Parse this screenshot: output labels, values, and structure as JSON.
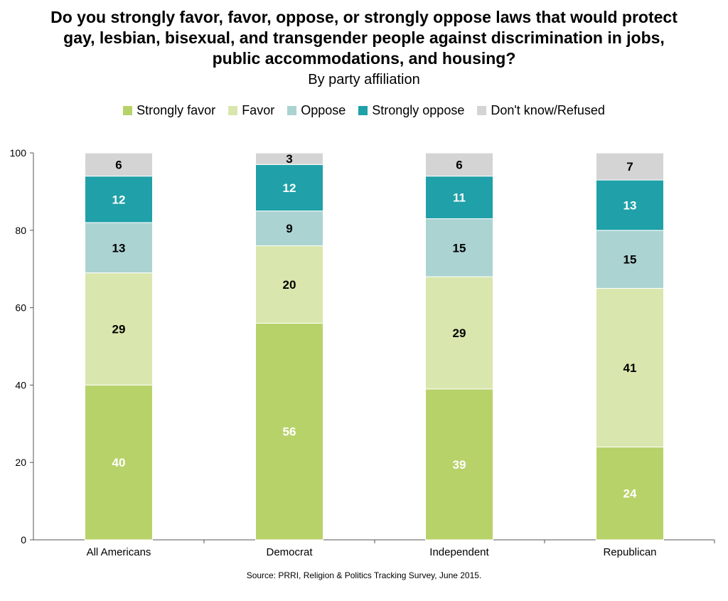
{
  "chart_data": {
    "type": "bar",
    "stacked": true,
    "title": "Do you strongly favor, favor, oppose, or strongly oppose laws that would protect gay, lesbian, bisexual, and transgender people against discrimination in jobs, public accommodations, and housing?",
    "subtitle": "By party affiliation",
    "categories": [
      "All Americans",
      "Democrat",
      "Independent",
      "Republican"
    ],
    "ylim": [
      0,
      100
    ],
    "yticks": [
      0,
      20,
      40,
      60,
      80,
      100
    ],
    "legend_position": "top",
    "grid": false,
    "series": [
      {
        "name": "Strongly favor",
        "color": "#b8d26a",
        "label_color": "#ffffff",
        "values": [
          40,
          56,
          39,
          24
        ]
      },
      {
        "name": "Favor",
        "color": "#d9e6ad",
        "label_color": "#000000",
        "values": [
          29,
          20,
          29,
          41
        ]
      },
      {
        "name": "Oppose",
        "color": "#abd3d2",
        "label_color": "#000000",
        "values": [
          13,
          9,
          15,
          15
        ]
      },
      {
        "name": "Strongly oppose",
        "color": "#20a0a8",
        "label_color": "#ffffff",
        "values": [
          12,
          12,
          11,
          13
        ]
      },
      {
        "name": "Don't know/Refused",
        "color": "#d4d4d4",
        "label_color": "#000000",
        "values": [
          6,
          3,
          6,
          7
        ]
      }
    ]
  },
  "source": "Source: PRRI, Religion & Politics Tracking Survey, June 2015."
}
